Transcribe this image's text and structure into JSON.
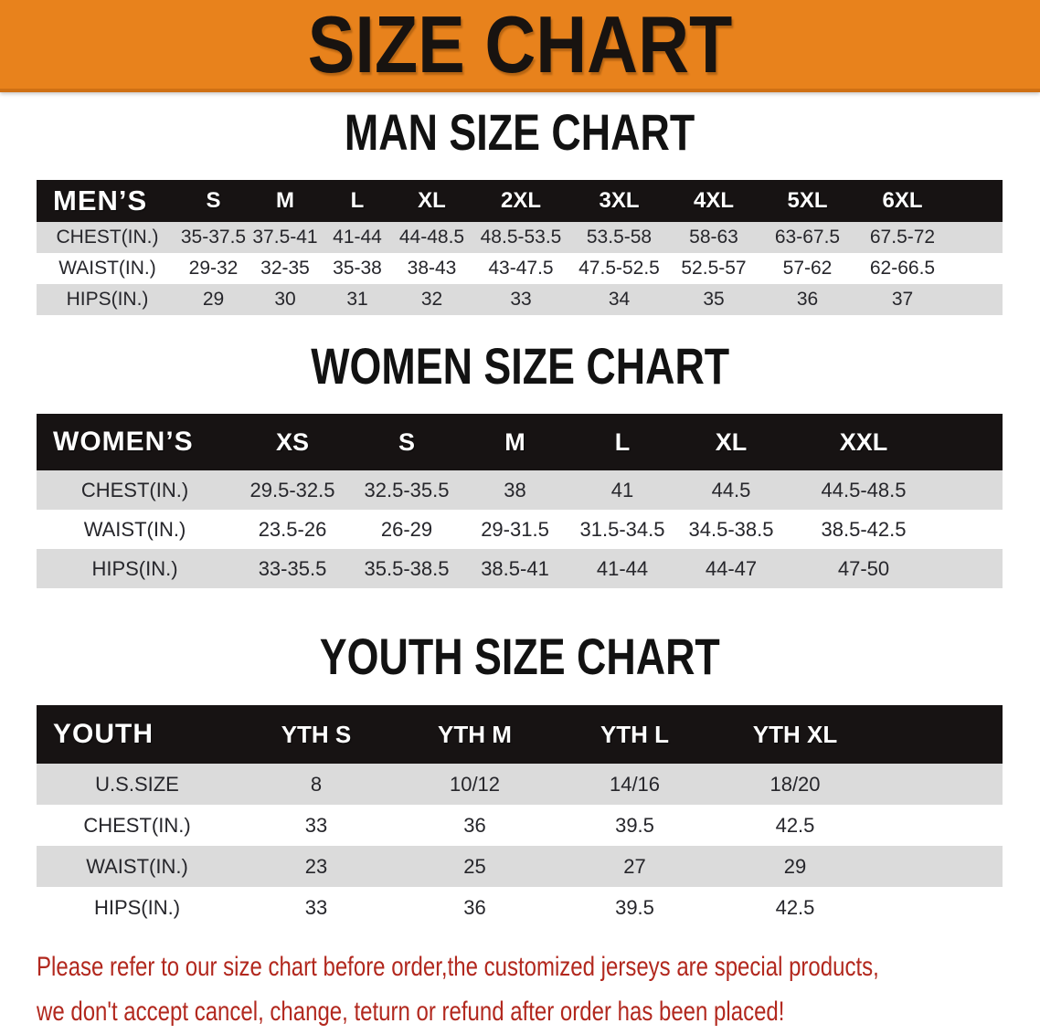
{
  "banner": {
    "title": "SIZE CHART"
  },
  "colors": {
    "banner_bg": "#E8821C",
    "table_header_bg": "#171313",
    "stripe_gray": "#DBDBDB",
    "footer_red": "#B2281E"
  },
  "sections": [
    {
      "heading": "MAN SIZE CHART",
      "table": {
        "label": "MEN’S",
        "columns": [
          "S",
          "M",
          "L",
          "XL",
          "2XL",
          "3XL",
          "4XL",
          "5XL",
          "6XL"
        ],
        "rows": [
          {
            "label": "CHEST(IN.)",
            "values": [
              "35-37.5",
              "37.5-41",
              "41-44",
              "44-48.5",
              "48.5-53.5",
              "53.5-58",
              "58-63",
              "63-67.5",
              "67.5-72"
            ]
          },
          {
            "label": "WAIST(IN.)",
            "values": [
              "29-32",
              "32-35",
              "35-38",
              "38-43",
              "43-47.5",
              "47.5-52.5",
              "52.5-57",
              "57-62",
              "62-66.5"
            ]
          },
          {
            "label": "HIPS(IN.)",
            "values": [
              "29",
              "30",
              "31",
              "32",
              "33",
              "34",
              "35",
              "36",
              "37"
            ]
          }
        ]
      }
    },
    {
      "heading": "WOMEN SIZE CHART",
      "table": {
        "label": "WOMEN’S",
        "columns": [
          "XS",
          "S",
          "M",
          "L",
          "XL",
          "XXL"
        ],
        "rows": [
          {
            "label": "CHEST(IN.)",
            "values": [
              "29.5-32.5",
              "32.5-35.5",
              "38",
              "41",
              "44.5",
              "44.5-48.5"
            ]
          },
          {
            "label": "WAIST(IN.)",
            "values": [
              "23.5-26",
              "26-29",
              "29-31.5",
              "31.5-34.5",
              "34.5-38.5",
              "38.5-42.5"
            ]
          },
          {
            "label": "HIPS(IN.)",
            "values": [
              "33-35.5",
              "35.5-38.5",
              "38.5-41",
              "41-44",
              "44-47",
              "47-50"
            ]
          }
        ]
      }
    },
    {
      "heading": "YOUTH SIZE CHART",
      "table": {
        "label": "YOUTH",
        "columns": [
          "YTH S",
          "YTH M",
          "YTH L",
          "YTH XL"
        ],
        "rows": [
          {
            "label": "U.S.SIZE",
            "values": [
              "8",
              "10/12",
              "14/16",
              "18/20"
            ]
          },
          {
            "label": "CHEST(IN.)",
            "values": [
              "33",
              "36",
              "39.5",
              "42.5"
            ]
          },
          {
            "label": "WAIST(IN.)",
            "values": [
              "23",
              "25",
              "27",
              "29"
            ]
          },
          {
            "label": "HIPS(IN.)",
            "values": [
              "33",
              "36",
              "39.5",
              "42.5"
            ]
          }
        ]
      }
    }
  ],
  "footer": {
    "line1": "Please refer to our size chart before order,the customized jerseys are special products,",
    "line2": "we don't accept cancel, change, teturn or refund after order has been placed!"
  }
}
